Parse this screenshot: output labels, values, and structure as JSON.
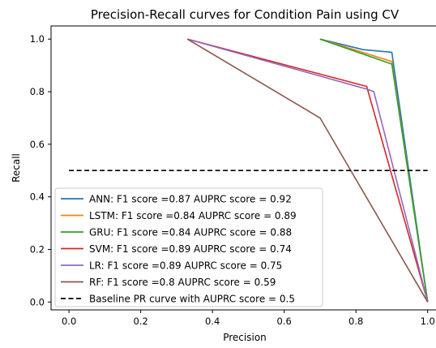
{
  "chart_data": {
    "type": "line",
    "title": "Precision-Recall curves for Condition Pain using CV",
    "xlabel": "Precision",
    "ylabel": "Recall",
    "xlim": [
      -0.05,
      1.03
    ],
    "ylim": [
      -0.03,
      1.05
    ],
    "xticks": [
      0.0,
      0.2,
      0.4,
      0.6,
      0.8,
      1.0
    ],
    "xtick_labels": [
      "0.0",
      "0.2",
      "0.4",
      "0.6",
      "0.8",
      "1.0"
    ],
    "yticks": [
      0.0,
      0.2,
      0.4,
      0.6,
      0.8,
      1.0
    ],
    "ytick_labels": [
      "0.0",
      "0.2",
      "0.4",
      "0.6",
      "0.8",
      "1.0"
    ],
    "grid": false,
    "legend_position": "lower-left",
    "series": [
      {
        "name": "ANN: F1 score =0.87 AUPRC score = 0.92",
        "color": "#1f77b4",
        "dash": "solid",
        "x": [
          0.7,
          0.82,
          0.9,
          1.0
        ],
        "y": [
          1.0,
          0.96,
          0.95,
          0.0
        ]
      },
      {
        "name": "LSTM: F1 score =0.84 AUPRC score = 0.89",
        "color": "#ff7f0e",
        "dash": "solid",
        "x": [
          0.7,
          0.9,
          1.0
        ],
        "y": [
          1.0,
          0.915,
          0.0
        ]
      },
      {
        "name": "GRU: F1 score =0.84 AUPRC score = 0.88",
        "color": "#2ca02c",
        "dash": "solid",
        "x": [
          0.7,
          0.9,
          1.0
        ],
        "y": [
          1.0,
          0.905,
          0.0
        ]
      },
      {
        "name": "SVM: F1 score =0.89 AUPRC score = 0.74",
        "color": "#d62728",
        "dash": "solid",
        "x": [
          0.33,
          0.83,
          1.0
        ],
        "y": [
          1.0,
          0.82,
          0.0
        ]
      },
      {
        "name": "LR: F1 score =0.89 AUPRC score = 0.75",
        "color": "#9467bd",
        "dash": "solid",
        "x": [
          0.33,
          0.83,
          0.85,
          1.0
        ],
        "y": [
          1.0,
          0.81,
          0.8,
          0.0
        ]
      },
      {
        "name": "RF: F1 score =0.8 AUPRC score = 0.59",
        "color": "#8c564b",
        "dash": "solid",
        "x": [
          0.33,
          0.7,
          1.0
        ],
        "y": [
          1.0,
          0.7,
          0.0
        ]
      },
      {
        "name": "Baseline PR curve with AUPRC score = 0.5",
        "color": "#000000",
        "dash": "dashed",
        "x": [
          0.0,
          1.0
        ],
        "y": [
          0.5,
          0.5
        ]
      }
    ]
  }
}
